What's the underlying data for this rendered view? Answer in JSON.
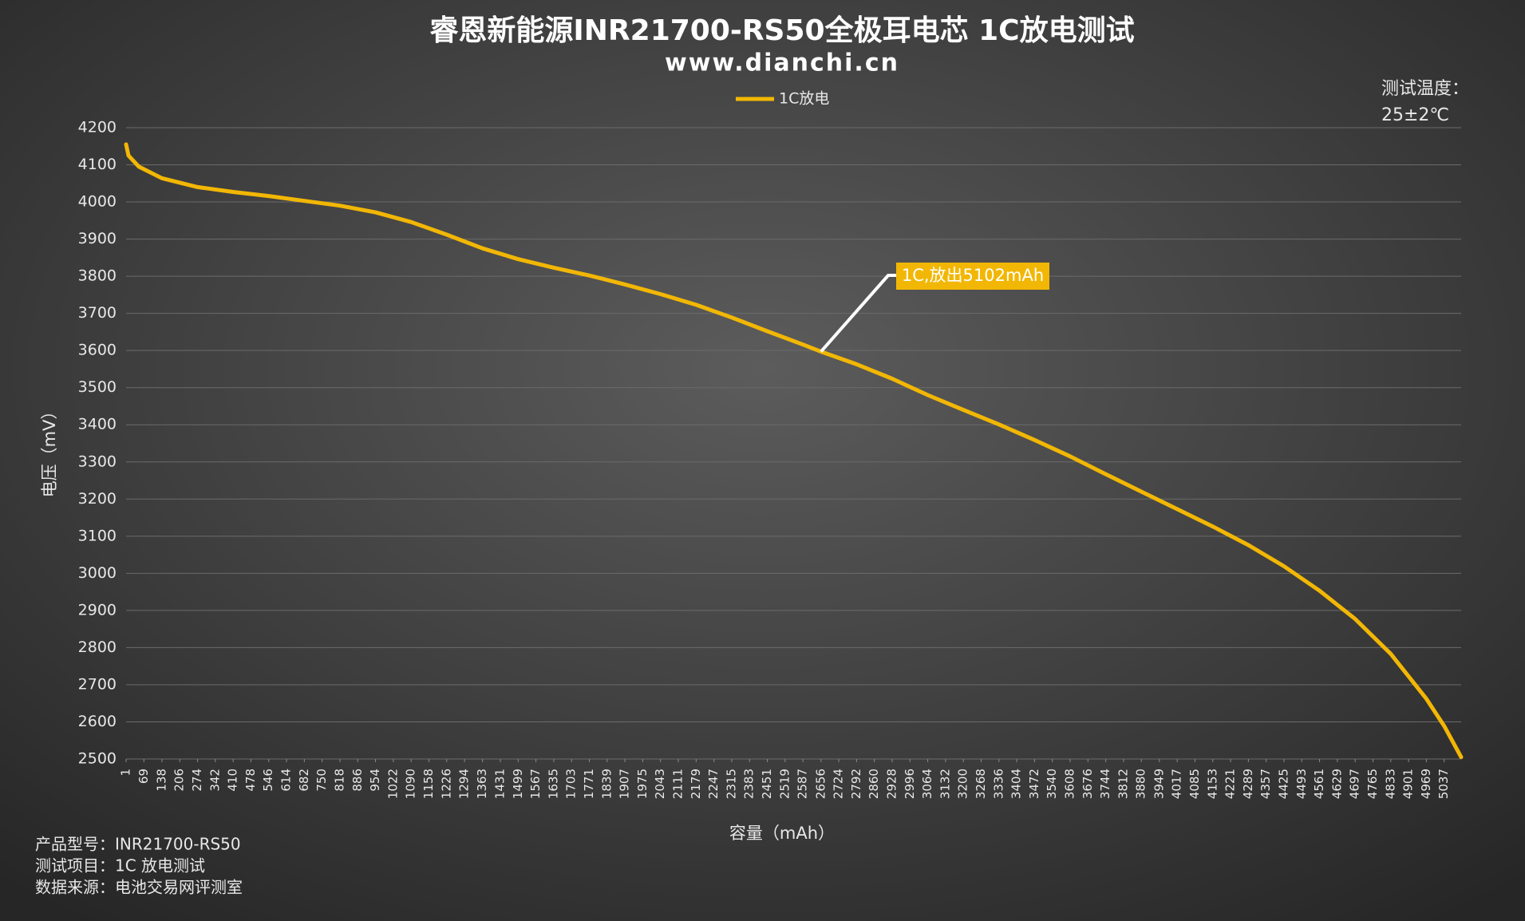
{
  "chart_data": {
    "type": "line",
    "title": "睿恩新能源INR21700-RS50全极耳电芯 1C放电测试",
    "subtitle": "www.dianchi.cn",
    "x_label": "容量（mAh）",
    "y_label": "电压（mV）",
    "temperature_label": "测试温度：",
    "temperature_value": "25±2℃",
    "notes": [
      "产品型号：INR21700-RS50",
      "测试项目：1C 放电测试",
      "数据来源：电池交易网评测室"
    ],
    "annotation": {
      "text": "1C,放出5102mAh",
      "x": 2656,
      "y": 3597
    },
    "x": [
      1,
      10,
      50,
      138,
      274,
      410,
      546,
      682,
      818,
      954,
      1090,
      1226,
      1363,
      1499,
      1635,
      1771,
      1907,
      2043,
      2179,
      2315,
      2451,
      2587,
      2656,
      2792,
      2928,
      3064,
      3200,
      3336,
      3472,
      3608,
      3744,
      3880,
      4017,
      4153,
      4289,
      4425,
      4561,
      4697,
      4833,
      4969,
      5037,
      5102
    ],
    "series": [
      {
        "name": "1C放电",
        "color": "#f2b705",
        "values": [
          4155,
          4125,
          4095,
          4064,
          4040,
          4027,
          4016,
          4003,
          3990,
          3972,
          3946,
          3912,
          3875,
          3846,
          3823,
          3802,
          3778,
          3752,
          3723,
          3689,
          3652,
          3616,
          3597,
          3563,
          3524,
          3480,
          3440,
          3401,
          3359,
          3315,
          3267,
          3220,
          3173,
          3126,
          3076,
          3019,
          2953,
          2877,
          2783,
          2662,
          2589,
          2505
        ]
      }
    ],
    "xlim": [
      1,
      5102
    ],
    "xticks": [
      1,
      69,
      138,
      206,
      274,
      342,
      410,
      478,
      546,
      614,
      682,
      750,
      818,
      886,
      954,
      1022,
      1090,
      1158,
      1226,
      1294,
      1363,
      1431,
      1499,
      1567,
      1635,
      1703,
      1771,
      1839,
      1907,
      1975,
      2043,
      2111,
      2179,
      2247,
      2315,
      2383,
      2451,
      2519,
      2587,
      2656,
      2724,
      2792,
      2860,
      2928,
      2996,
      3064,
      3132,
      3200,
      3268,
      3336,
      3404,
      3472,
      3540,
      3608,
      3676,
      3744,
      3812,
      3880,
      3949,
      4017,
      4085,
      4153,
      4221,
      4289,
      4357,
      4425,
      4493,
      4561,
      4629,
      4697,
      4765,
      4833,
      4901,
      4969,
      5037
    ],
    "ylim": [
      2500,
      4200
    ],
    "yticks": [
      2500,
      2600,
      2700,
      2800,
      2900,
      3000,
      3100,
      3200,
      3300,
      3400,
      3500,
      3600,
      3700,
      3800,
      3900,
      4000,
      4100,
      4200
    ],
    "grid": true,
    "legend": "top"
  }
}
